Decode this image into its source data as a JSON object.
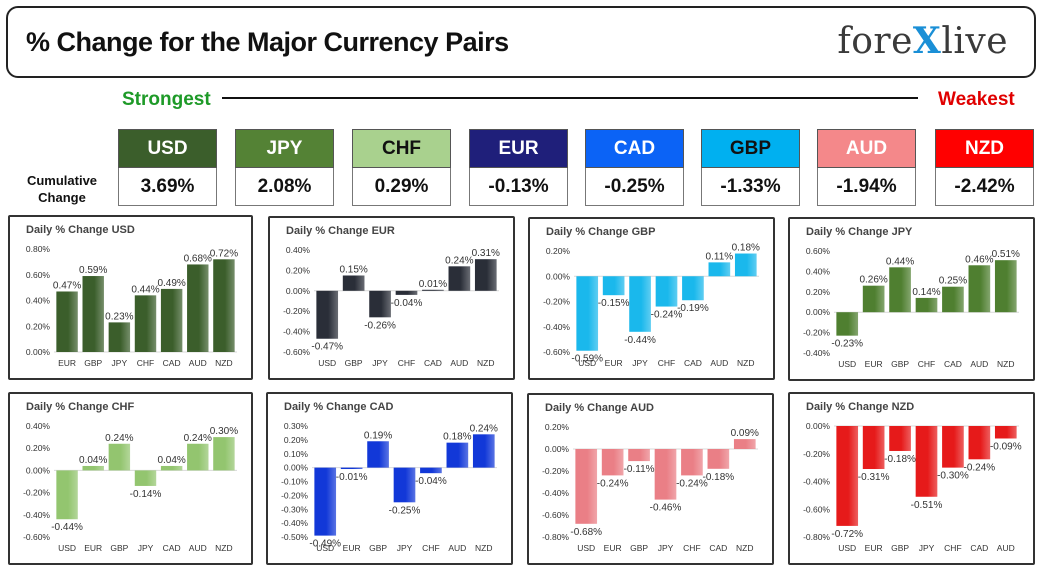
{
  "header": {
    "title": "% Change for the Major Currency Pairs",
    "logo_pre": "fore",
    "logo_x": "X",
    "logo_post": "live"
  },
  "scale": {
    "strongest_label": "Strongest",
    "weakest_label": "Weakest"
  },
  "cumulative": {
    "label_line1": "Cumulative",
    "label_line2": "Change",
    "currencies": [
      {
        "code": "USD",
        "value": "3.69%",
        "bg": "#3b5e2b",
        "fg": "#ffffff"
      },
      {
        "code": "JPY",
        "value": "2.08%",
        "bg": "#548235",
        "fg": "#ffffff"
      },
      {
        "code": "CHF",
        "value": "0.29%",
        "bg": "#a9d18e",
        "fg": "#111111"
      },
      {
        "code": "EUR",
        "value": "-0.13%",
        "bg": "#1f1f7a",
        "fg": "#ffffff"
      },
      {
        "code": "CAD",
        "value": "-0.25%",
        "bg": "#0b63f6",
        "fg": "#ffffff"
      },
      {
        "code": "GBP",
        "value": "-1.33%",
        "bg": "#00b0f0",
        "fg": "#111111"
      },
      {
        "code": "AUD",
        "value": "-1.94%",
        "bg": "#f4888a",
        "fg": "#ffffff"
      },
      {
        "code": "NZD",
        "value": "-2.42%",
        "bg": "#ff0000",
        "fg": "#ffffff"
      }
    ]
  },
  "chart_data": [
    {
      "type": "bar",
      "title": "Daily % Change USD",
      "categories": [
        "EUR",
        "GBP",
        "JPY",
        "CHF",
        "CAD",
        "AUD",
        "NZD"
      ],
      "values": [
        0.47,
        0.59,
        0.23,
        0.44,
        0.49,
        0.68,
        0.72
      ],
      "labels": [
        "0.47%",
        "0.59%",
        "0.23%",
        "0.44%",
        "0.49%",
        "0.68%",
        "0.72%"
      ],
      "ylim": [
        0,
        0.8
      ],
      "yticks": [
        0,
        0.2,
        0.4,
        0.6,
        0.8
      ],
      "ytick_labels": [
        "0.00%",
        "0.20%",
        "0.40%",
        "0.60%",
        "0.80%"
      ],
      "color": "#3b5e2b"
    },
    {
      "type": "bar",
      "title": "Daily % Change EUR",
      "categories": [
        "USD",
        "GBP",
        "JPY",
        "CHF",
        "CAD",
        "AUD",
        "NZD"
      ],
      "values": [
        -0.47,
        0.15,
        -0.26,
        -0.04,
        0.01,
        0.24,
        0.31
      ],
      "labels": [
        "-0.47%",
        "0.15%",
        "-0.26%",
        "-0.04%",
        "0.01%",
        "0.24%",
        "0.31%"
      ],
      "ylim": [
        -0.6,
        0.4
      ],
      "yticks": [
        -0.6,
        -0.4,
        -0.2,
        0,
        0.2,
        0.4
      ],
      "ytick_labels": [
        "-0.60%",
        "-0.40%",
        "-0.20%",
        "0.00%",
        "0.20%",
        "0.40%"
      ],
      "color": "#2a2e38"
    },
    {
      "type": "bar",
      "title": "Daily % Change GBP",
      "categories": [
        "USD",
        "EUR",
        "JPY",
        "CHF",
        "CAD",
        "AUD",
        "NZD"
      ],
      "values": [
        -0.59,
        -0.15,
        -0.44,
        -0.24,
        -0.19,
        0.11,
        0.18
      ],
      "labels": [
        "-0.59%",
        "-0.15%",
        "-0.44%",
        "-0.24%",
        "-0.19%",
        "0.11%",
        "0.18%"
      ],
      "ylim": [
        -0.6,
        0.2
      ],
      "yticks": [
        -0.6,
        -0.4,
        -0.2,
        0,
        0.2
      ],
      "ytick_labels": [
        "-0.60%",
        "-0.40%",
        "-0.20%",
        "0.00%",
        "0.20%"
      ],
      "color": "#1ab8ec"
    },
    {
      "type": "bar",
      "title": "Daily % Change JPY",
      "categories": [
        "USD",
        "EUR",
        "GBP",
        "CHF",
        "CAD",
        "AUD",
        "NZD"
      ],
      "values": [
        -0.23,
        0.26,
        0.44,
        0.14,
        0.25,
        0.46,
        0.51
      ],
      "labels": [
        "-0.23%",
        "0.26%",
        "0.44%",
        "0.14%",
        "0.25%",
        "0.46%",
        "0.51%"
      ],
      "ylim": [
        -0.4,
        0.6
      ],
      "yticks": [
        -0.4,
        -0.2,
        0,
        0.2,
        0.4,
        0.6
      ],
      "ytick_labels": [
        "-0.40%",
        "-0.20%",
        "0.00%",
        "0.20%",
        "0.40%",
        "0.60%"
      ],
      "color": "#4f7f30"
    },
    {
      "type": "bar",
      "title": "Daily % Change CHF",
      "categories": [
        "USD",
        "EUR",
        "GBP",
        "JPY",
        "CAD",
        "AUD",
        "NZD"
      ],
      "values": [
        -0.44,
        0.04,
        0.24,
        -0.14,
        0.04,
        0.24,
        0.3
      ],
      "labels": [
        "-0.44%",
        "0.04%",
        "0.24%",
        "-0.14%",
        "0.04%",
        "0.24%",
        "0.30%"
      ],
      "ylim": [
        -0.6,
        0.4
      ],
      "yticks": [
        -0.6,
        -0.4,
        -0.2,
        0,
        0.2,
        0.4
      ],
      "ytick_labels": [
        "-0.60%",
        "-0.40%",
        "-0.20%",
        "0.00%",
        "0.20%",
        "0.40%"
      ],
      "color": "#93c56f"
    },
    {
      "type": "bar",
      "title": "Daily % Change CAD",
      "categories": [
        "USD",
        "EUR",
        "GBP",
        "JPY",
        "CHF",
        "AUD",
        "NZD"
      ],
      "values": [
        -0.49,
        -0.01,
        0.19,
        -0.25,
        -0.04,
        0.18,
        0.24
      ],
      "labels": [
        "-0.49%",
        "-0.01%",
        "0.19%",
        "-0.25%",
        "-0.04%",
        "0.18%",
        "0.24%"
      ],
      "ylim": [
        -0.5,
        0.3
      ],
      "yticks": [
        -0.5,
        -0.4,
        -0.3,
        -0.2,
        -0.1,
        0,
        0.1,
        0.2,
        0.3
      ],
      "ytick_labels": [
        "-0.50%",
        "-0.40%",
        "-0.30%",
        "-0.20%",
        "-0.10%",
        "0.00%",
        "0.10%",
        "0.20%",
        "0.30%"
      ],
      "color": "#1238d8"
    },
    {
      "type": "bar",
      "title": "Daily % Change AUD",
      "categories": [
        "USD",
        "EUR",
        "GBP",
        "JPY",
        "CHF",
        "CAD",
        "NZD"
      ],
      "values": [
        -0.68,
        -0.24,
        -0.11,
        -0.46,
        -0.24,
        -0.18,
        0.09
      ],
      "labels": [
        "-0.68%",
        "-0.24%",
        "-0.11%",
        "-0.46%",
        "-0.24%",
        "-0.18%",
        "0.09%"
      ],
      "ylim": [
        -0.8,
        0.2
      ],
      "yticks": [
        -0.8,
        -0.6,
        -0.4,
        -0.2,
        0,
        0.2
      ],
      "ytick_labels": [
        "-0.80%",
        "-0.60%",
        "-0.40%",
        "-0.20%",
        "0.00%",
        "0.20%"
      ],
      "color": "#ea7f86"
    },
    {
      "type": "bar",
      "title": "Daily % Change NZD",
      "categories": [
        "USD",
        "EUR",
        "GBP",
        "JPY",
        "CHF",
        "CAD",
        "AUD"
      ],
      "values": [
        -0.72,
        -0.31,
        -0.18,
        -0.51,
        -0.3,
        -0.24,
        -0.09
      ],
      "labels": [
        "-0.72%",
        "-0.31%",
        "-0.18%",
        "-0.51%",
        "-0.30%",
        "-0.24%",
        "-0.09%"
      ],
      "ylim": [
        -0.8,
        0
      ],
      "yticks": [
        -0.8,
        -0.6,
        -0.4,
        -0.2,
        0
      ],
      "ytick_labels": [
        "-0.80%",
        "-0.60%",
        "-0.40%",
        "-0.20%",
        "0.00%"
      ],
      "color": "#e61a1a"
    }
  ]
}
